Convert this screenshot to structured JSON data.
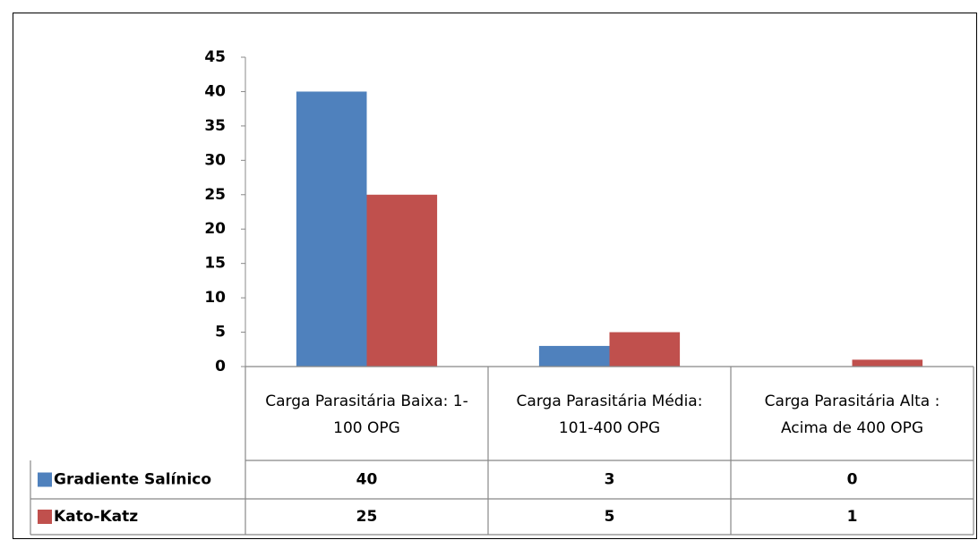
{
  "chart_data": {
    "type": "bar",
    "categories": [
      "Carga Parasitária Baixa: 1-100 OPG",
      "Carga Parasitária Média: 101-400 OPG",
      "Carga Parasitária Alta : Acima de 400 OPG"
    ],
    "series": [
      {
        "name": "Gradiente Salínico",
        "color": "#4f81bd",
        "values": [
          40,
          3,
          0
        ]
      },
      {
        "name": "Kato-Katz",
        "color": "#c0504d",
        "values": [
          25,
          5,
          1
        ]
      }
    ],
    "ylim": [
      0,
      45
    ],
    "yticks": [
      0,
      5,
      10,
      15,
      20,
      25,
      30,
      35,
      40,
      45
    ],
    "grid": false,
    "data_table": true
  }
}
